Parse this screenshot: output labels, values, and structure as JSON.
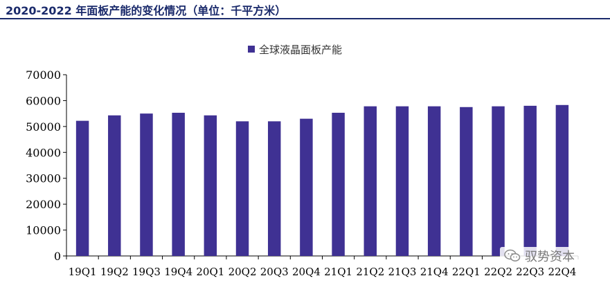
{
  "header": {
    "title": "2020-2022 年面板产能的变化情况（单位：千平方米）"
  },
  "watermark": {
    "text": "驭势资本",
    "icon": "wechat-icon"
  },
  "colors": {
    "bar": "#3f3193",
    "axis": "#000000",
    "header": "#1a2a6b"
  },
  "chart_data": {
    "type": "bar",
    "title": "",
    "xlabel": "",
    "ylabel": "",
    "categories": [
      "19Q1",
      "19Q2",
      "19Q3",
      "19Q4",
      "20Q1",
      "20Q2",
      "20Q3",
      "20Q4",
      "21Q1",
      "21Q2",
      "21Q3",
      "21Q4",
      "22Q1",
      "22Q2",
      "22Q3",
      "22Q4"
    ],
    "series": [
      {
        "name": "全球液晶面板产能",
        "values": [
          52200,
          54300,
          55000,
          55300,
          54300,
          52000,
          52000,
          53000,
          55300,
          57800,
          57800,
          57800,
          57500,
          57800,
          58000,
          58300
        ]
      }
    ],
    "ylim": [
      0,
      70000
    ],
    "yticks": [
      0,
      10000,
      20000,
      30000,
      40000,
      50000,
      60000,
      70000
    ],
    "grid": false,
    "legend_position": "top-center"
  }
}
